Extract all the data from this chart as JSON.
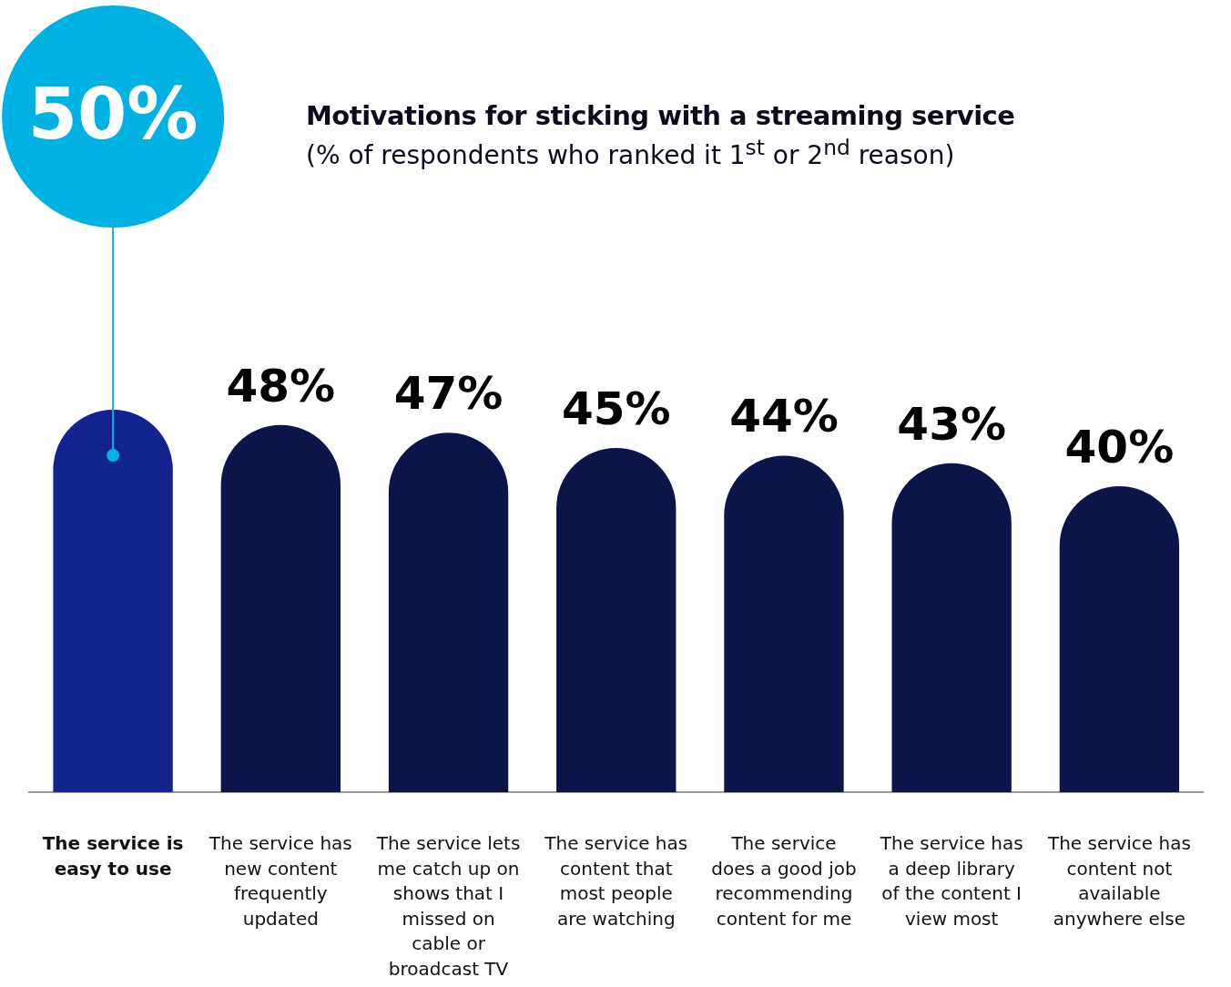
{
  "chart_data": {
    "type": "bar",
    "title": "Motivations for sticking with a streaming service",
    "subtitle": "(% of respondents who ranked it 1$^{st}$ or 2$^{nd}$ reason)",
    "categories": [
      "The service is easy to use",
      "The service has new content frequently updated",
      "The service lets me catch up on shows that I missed on cable or broadcast TV",
      "The service has content that most people are watching",
      "The service does a good job recommending content for me",
      "The service has  a  deep library of the content I view most",
      "The service has content not available anywhere else"
    ],
    "values": [
      50,
      48,
      47,
      45,
      44,
      43,
      40
    ],
    "colors": [
      "#13238f",
      "#0c154a",
      "#0c154a",
      "#0c154a",
      "#0c154a",
      "#0c154a",
      "#0c154a"
    ],
    "value_labels": [
      null,
      "48%",
      "47%",
      "45%",
      "44%",
      "43%",
      "40%"
    ],
    "annotations": [
      "50%"
    ],
    "grid": false,
    "legend": false
  }
}
